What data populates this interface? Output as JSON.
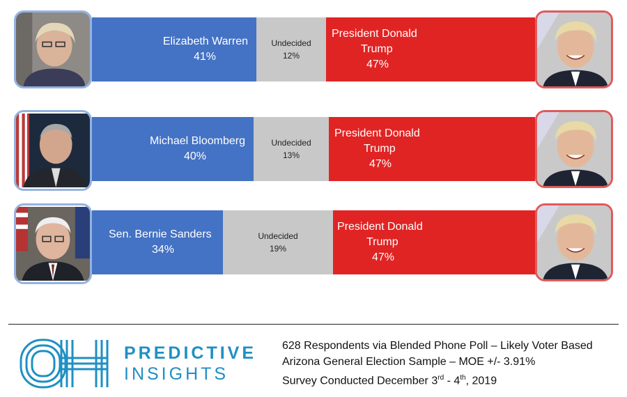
{
  "chart_data": [
    {
      "type": "bar",
      "stacked": true,
      "orientation": "horizontal",
      "categories": [
        "Elizabeth Warren",
        "Undecided",
        "President Donald Trump"
      ],
      "values": [
        41,
        12,
        47
      ],
      "labels": {
        "dem": "Elizabeth Warren",
        "dem_pct": "41%",
        "undecided": "Undecided",
        "undecided_pct": "12%",
        "rep_line1": "President Donald",
        "rep_line2": "Trump",
        "rep_pct": "47%"
      }
    },
    {
      "type": "bar",
      "stacked": true,
      "orientation": "horizontal",
      "categories": [
        "Michael Bloomberg",
        "Undecided",
        "President Donald Trump"
      ],
      "values": [
        40,
        13,
        47
      ],
      "labels": {
        "dem": "Michael Bloomberg",
        "dem_pct": "40%",
        "undecided": "Undecided",
        "undecided_pct": "13%",
        "rep_line1": "President Donald",
        "rep_line2": "Trump",
        "rep_pct": "47%"
      }
    },
    {
      "type": "bar",
      "stacked": true,
      "orientation": "horizontal",
      "categories": [
        "Sen. Bernie Sanders",
        "Undecided",
        "President Donald Trump"
      ],
      "values": [
        34,
        19,
        47
      ],
      "labels": {
        "dem": "Sen. Bernie Sanders",
        "dem_pct": "34%",
        "undecided": "Undecided",
        "undecided_pct": "19%",
        "rep_line1": "President Donald",
        "rep_line2": "Trump",
        "rep_pct": "47%"
      }
    }
  ],
  "colors": {
    "dem": "#4472c4",
    "undecided": "#c8c8c8",
    "rep": "#e02424",
    "brand": "#1f8fc4"
  },
  "footer": {
    "brand_line1": "PREDICTIVE",
    "brand_line2": "INSIGHTS",
    "note1": "628 Respondents via Blended Phone Poll – Likely Voter Based",
    "note2": "Arizona General Election Sample – MOE +/- 3.91%",
    "note3_a": "Survey Conducted December 3",
    "note3_sup1": "rd",
    "note3_b": " - 4",
    "note3_sup2": "th",
    "note3_c": ", 2019"
  }
}
